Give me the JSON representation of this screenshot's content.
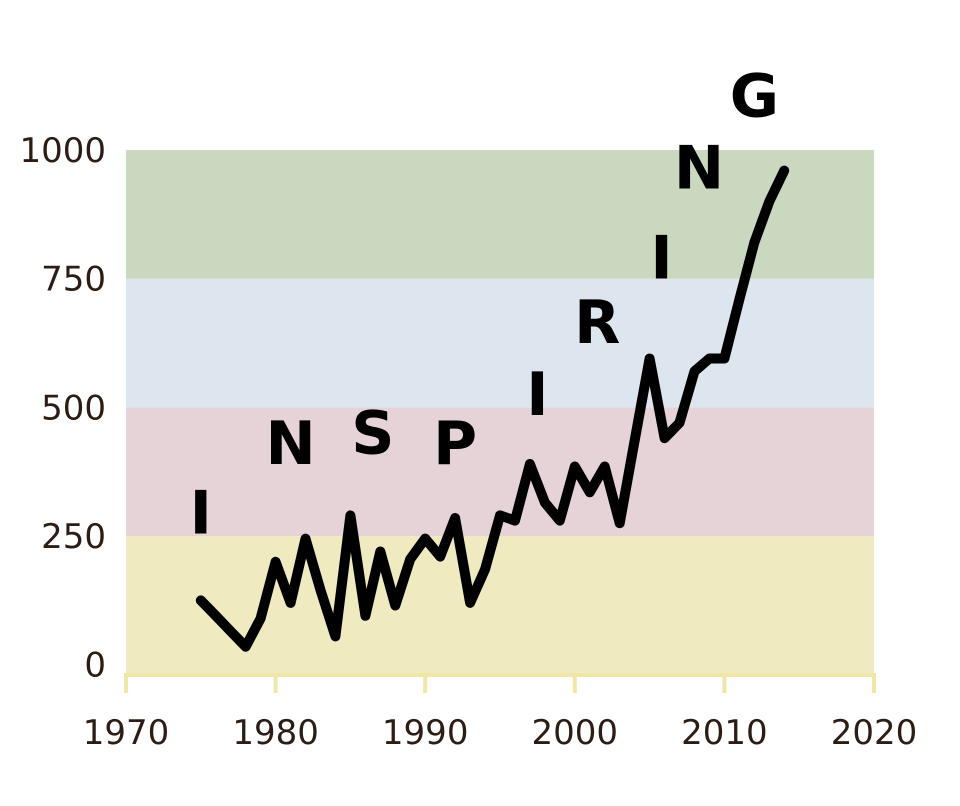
{
  "chart_data": {
    "type": "line",
    "title": "",
    "xlabel": "",
    "ylabel": "",
    "xlim": [
      1970,
      2020
    ],
    "ylim": [
      -20,
      1000
    ],
    "x_ticks": [
      "1970",
      "1980",
      "1990",
      "2000",
      "2010",
      "2020"
    ],
    "y_ticks": [
      "0",
      "250",
      "500",
      "750",
      "1000"
    ],
    "grid": false,
    "bands": [
      {
        "from": -20,
        "to": 250,
        "color": "#f0eac0"
      },
      {
        "from": 250,
        "to": 500,
        "color": "#e5d3d8"
      },
      {
        "from": 500,
        "to": 750,
        "color": "#dde6ee"
      },
      {
        "from": 750,
        "to": 1000,
        "color": "#cad8c0"
      }
    ],
    "series": [
      {
        "color": "#000000",
        "x": [
          1975,
          1976,
          1977,
          1978,
          1979,
          1980,
          1981,
          1982,
          1983,
          1984,
          1985,
          1986,
          1987,
          1988,
          1989,
          1990,
          1991,
          1992,
          1993,
          1994,
          1995,
          1996,
          1997,
          1998,
          1999,
          2000,
          2001,
          2002,
          2003,
          2004,
          2005,
          2006,
          2007,
          2008,
          2009,
          2010,
          2011,
          2012,
          2013,
          2014
        ],
        "y": [
          125,
          95,
          65,
          35,
          90,
          200,
          120,
          245,
          145,
          55,
          290,
          95,
          220,
          115,
          205,
          245,
          210,
          285,
          120,
          185,
          290,
          280,
          390,
          315,
          280,
          385,
          335,
          385,
          275,
          435,
          595,
          440,
          470,
          570,
          595,
          595,
          710,
          820,
          900,
          960
        ]
      }
    ],
    "annotations": [
      {
        "text": "I",
        "x": 1975,
        "y": 255
      },
      {
        "text": "N",
        "x": 1981,
        "y": 390
      },
      {
        "text": "S",
        "x": 1986.5,
        "y": 410
      },
      {
        "text": "P",
        "x": 1992,
        "y": 390
      },
      {
        "text": "I",
        "x": 1997.5,
        "y": 485
      },
      {
        "text": "R",
        "x": 2001.5,
        "y": 625
      },
      {
        "text": "I",
        "x": 2005.8,
        "y": 750
      },
      {
        "text": "N",
        "x": 2008.3,
        "y": 925
      },
      {
        "text": "G",
        "x": 2012,
        "y": 1065
      }
    ]
  }
}
